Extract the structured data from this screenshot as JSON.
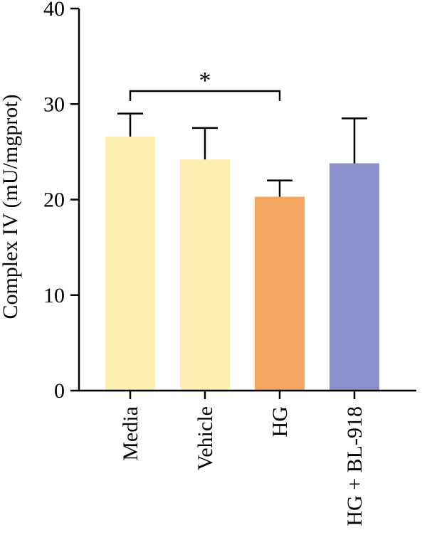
{
  "chart_data": {
    "type": "bar",
    "title": "",
    "xlabel": "",
    "ylabel": "Complex IV (mU/mgprot)",
    "ylim": [
      0,
      40
    ],
    "yticks": [
      0,
      10,
      20,
      30,
      40
    ],
    "grid": false,
    "legend": "none",
    "categories": [
      "Media",
      "Vehicle",
      "HG",
      "HG + BL-918"
    ],
    "values": [
      26.6,
      24.2,
      20.3,
      23.8
    ],
    "error_upper": [
      2.4,
      3.3,
      1.7,
      4.7
    ],
    "colors": [
      "#FCF0B0",
      "#FCF0B0",
      "#F2A65F",
      "#8C91CC"
    ],
    "significance": [
      {
        "from": "Media",
        "to": "HG",
        "label": "*"
      }
    ]
  }
}
